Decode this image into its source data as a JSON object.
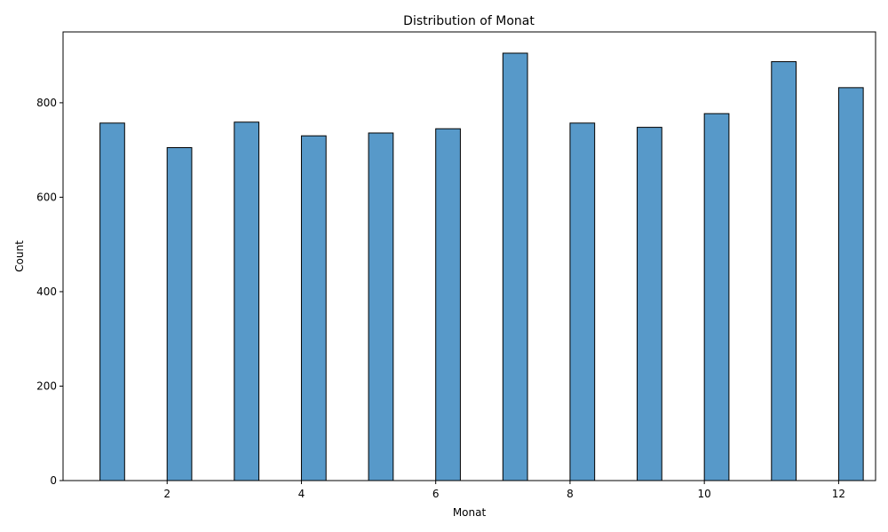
{
  "chart_data": {
    "type": "bar",
    "title": "Distribution of Monat",
    "xlabel": "Monat",
    "ylabel": "Count",
    "xlim": [
      0.45,
      12.55
    ],
    "ylim": [
      0,
      950
    ],
    "xticks": [
      2,
      4,
      6,
      8,
      10,
      12
    ],
    "yticks": [
      0,
      200,
      400,
      600,
      800
    ],
    "bin_width": 0.3667,
    "bars": [
      {
        "x": 1,
        "value": 757
      },
      {
        "x": 2,
        "value": 705
      },
      {
        "x": 3,
        "value": 759
      },
      {
        "x": 4,
        "value": 730
      },
      {
        "x": 5,
        "value": 736
      },
      {
        "x": 6,
        "value": 745
      },
      {
        "x": 7,
        "value": 905
      },
      {
        "x": 8,
        "value": 757
      },
      {
        "x": 9,
        "value": 748
      },
      {
        "x": 10,
        "value": 777
      },
      {
        "x": 11,
        "value": 887
      },
      {
        "x": 12,
        "value": 832
      }
    ],
    "bar_color": "#5799c9",
    "edge_color": "#000000",
    "grid": false
  }
}
